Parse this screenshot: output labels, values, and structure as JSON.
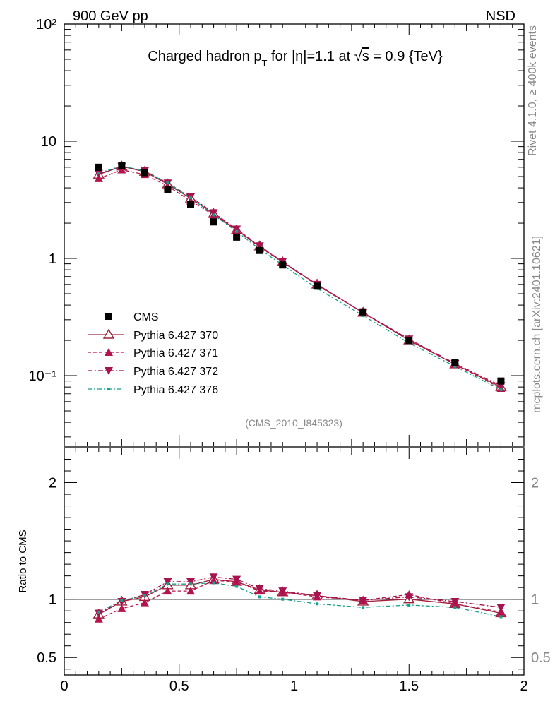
{
  "header": {
    "left": "900 GeV pp",
    "right": "NSD"
  },
  "side_labels": {
    "top": "Rivet 4.1.0, ≥ 400k events",
    "bottom": "mcplots.cern.ch [arXiv:2401.10621]"
  },
  "colors": {
    "cms": "#000000",
    "p370": "#a0213a",
    "p371": "#b5134f",
    "p372": "#a6134f",
    "p376": "#13a08c"
  },
  "chart_data": [
    {
      "type": "line",
      "title": "Charged hadron p_T for |η|=1.1 at √s = 0.9 {TeV}",
      "title_parts": {
        "a": "Charged hadron p",
        "sub": "T",
        "b": " for |η|=1.1 at ",
        "root": "√",
        "s": "s",
        "c": " = 0.9 {TeV}"
      },
      "annotation": "(CMS_2010_I845323)",
      "yscale": "log",
      "xlim": [
        0,
        2
      ],
      "ylim": [
        0.025,
        100
      ],
      "x": [
        0.15,
        0.25,
        0.35,
        0.45,
        0.55,
        0.65,
        0.75,
        0.85,
        0.95,
        1.1,
        1.3,
        1.5,
        1.7,
        1.9
      ],
      "series": [
        {
          "name": "CMS",
          "marker": "square",
          "values": [
            6.0,
            6.2,
            5.4,
            3.85,
            2.9,
            2.05,
            1.52,
            1.17,
            0.88,
            0.58,
            0.35,
            0.2,
            0.13,
            0.09
          ]
        },
        {
          "name": "Pythia 6.427 370",
          "marker": "open-triangle-up",
          "values": [
            5.2,
            6.1,
            5.5,
            4.3,
            3.25,
            2.4,
            1.75,
            1.27,
            0.93,
            0.6,
            0.345,
            0.2,
            0.125,
            0.08
          ]
        },
        {
          "name": "Pythia 6.427 371",
          "marker": "triangle-up",
          "values": [
            4.8,
            5.7,
            5.2,
            4.15,
            3.1,
            2.35,
            1.75,
            1.25,
            0.93,
            0.59,
            0.345,
            0.205,
            0.125,
            0.078
          ]
        },
        {
          "name": "Pythia 6.427 372",
          "marker": "triangle-down",
          "values": [
            5.3,
            6.1,
            5.6,
            4.4,
            3.35,
            2.45,
            1.78,
            1.28,
            0.94,
            0.6,
            0.345,
            0.205,
            0.127,
            0.082
          ]
        },
        {
          "name": "Pythia 6.427 376",
          "marker": "small-dot",
          "values": [
            5.35,
            6.15,
            5.55,
            4.4,
            3.3,
            2.35,
            1.7,
            1.2,
            0.88,
            0.555,
            0.325,
            0.19,
            0.12,
            0.076
          ]
        }
      ]
    },
    {
      "type": "line",
      "ylabel": "Ratio to CMS",
      "xlim": [
        0,
        2
      ],
      "ylim": [
        0.35,
        2.3
      ],
      "reference_line": 1,
      "x": [
        0.15,
        0.25,
        0.35,
        0.45,
        0.55,
        0.65,
        0.75,
        0.85,
        0.95,
        1.1,
        1.3,
        1.5,
        1.7,
        1.9
      ],
      "series": [
        {
          "name": "Pythia 6.427 370",
          "values": [
            0.87,
            0.98,
            1.02,
            1.12,
            1.12,
            1.17,
            1.15,
            1.08,
            1.06,
            1.03,
            0.98,
            1.0,
            0.96,
            0.88
          ]
        },
        {
          "name": "Pythia 6.427 371",
          "values": [
            0.83,
            0.92,
            0.97,
            1.07,
            1.07,
            1.16,
            1.15,
            1.07,
            1.06,
            1.02,
            0.99,
            1.04,
            0.96,
            0.89
          ]
        },
        {
          "name": "Pythia 6.427 372",
          "values": [
            0.88,
            0.98,
            1.04,
            1.15,
            1.15,
            1.19,
            1.17,
            1.09,
            1.07,
            1.03,
            0.99,
            1.02,
            0.98,
            0.93
          ]
        },
        {
          "name": "Pythia 6.427 376",
          "values": [
            0.89,
            0.99,
            1.03,
            1.13,
            1.13,
            1.14,
            1.11,
            1.02,
            1.0,
            0.96,
            0.93,
            0.95,
            0.93,
            0.85
          ]
        }
      ],
      "xticks": [
        "0",
        "0.5",
        "1",
        "1.5",
        "2"
      ],
      "yticks_main": [
        "10⁻¹",
        "1",
        "10",
        "10²"
      ],
      "yticks_ratio": [
        "0.5",
        "1",
        "2"
      ]
    }
  ]
}
